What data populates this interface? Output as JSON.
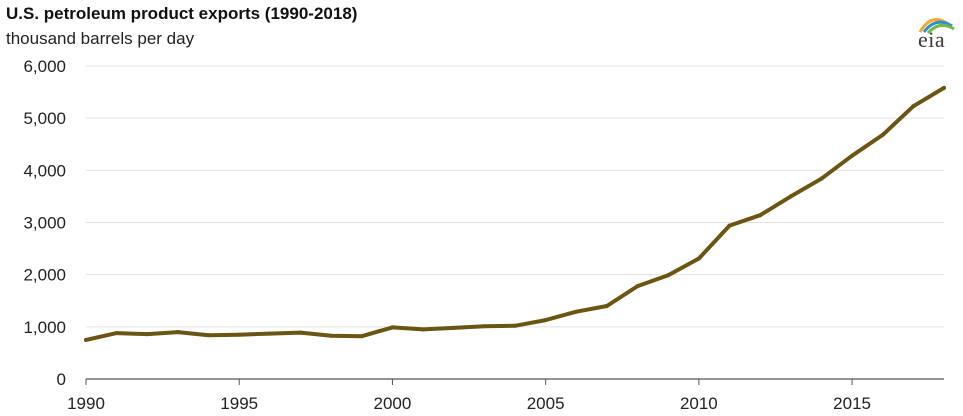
{
  "header": {
    "title": "U.S. petroleum product exports (1990-2018)",
    "subtitle": "thousand barrels per day"
  },
  "logo": {
    "text": "eia",
    "icon": "eia-logo-icon",
    "colors": [
      "#f4a933",
      "#2f8fce",
      "#74b84a"
    ]
  },
  "colors": {
    "line": "#6b5512",
    "grid": "#e2e2e2",
    "axis": "#555555"
  },
  "chart_data": {
    "type": "line",
    "title": "U.S. petroleum product exports (1990-2018)",
    "subtitle": "thousand barrels per day",
    "xlabel": "",
    "ylabel": "",
    "xlim": [
      1990,
      2018
    ],
    "ylim": [
      0,
      6000
    ],
    "x_ticks": [
      1990,
      1995,
      2000,
      2005,
      2010,
      2015
    ],
    "x_tick_labels": [
      "1990",
      "1995",
      "2000",
      "2005",
      "2010",
      "2015"
    ],
    "y_ticks": [
      0,
      1000,
      2000,
      3000,
      4000,
      5000,
      6000
    ],
    "y_tick_labels": [
      "0",
      "1,000",
      "2,000",
      "3,000",
      "4,000",
      "5,000",
      "6,000"
    ],
    "grid": "horizontal",
    "series": [
      {
        "name": "",
        "x": [
          1990,
          1991,
          1992,
          1993,
          1994,
          1995,
          1996,
          1997,
          1998,
          1999,
          2000,
          2001,
          2002,
          2003,
          2004,
          2005,
          2006,
          2007,
          2008,
          2009,
          2010,
          2011,
          2012,
          2013,
          2014,
          2015,
          2016,
          2017,
          2018
        ],
        "values": [
          750,
          880,
          860,
          900,
          840,
          850,
          870,
          890,
          830,
          820,
          990,
          950,
          980,
          1010,
          1020,
          1130,
          1290,
          1400,
          1780,
          1990,
          2310,
          2940,
          3140,
          3500,
          3840,
          4280,
          4680,
          5230,
          5580
        ]
      }
    ]
  }
}
